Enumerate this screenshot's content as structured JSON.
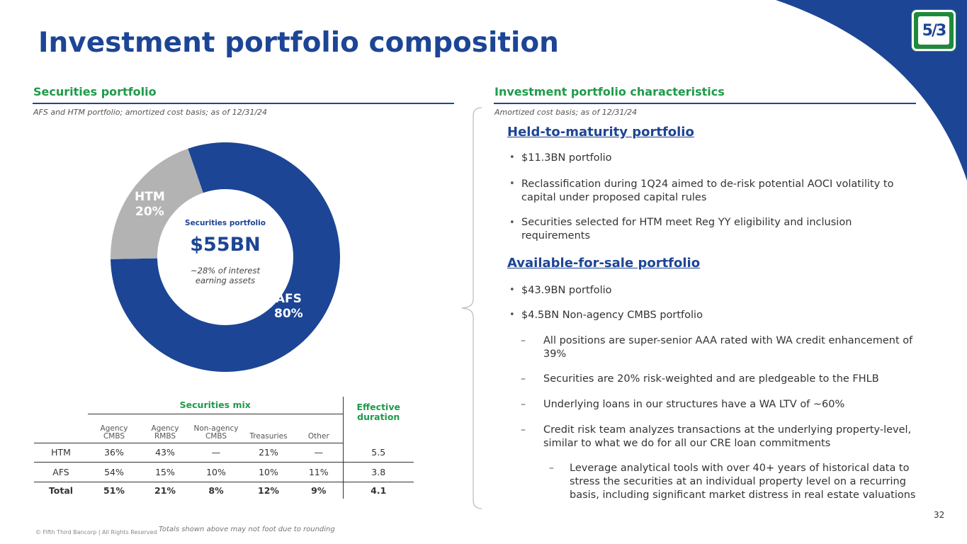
{
  "title": "Investment portfolio composition",
  "left": {
    "heading": "Securities portfolio",
    "subtitle": "AFS and HTM portfolio; amortized cost basis; as of 12/31/24",
    "donut": {
      "center_label": "Securities portfolio",
      "center_value": "$55BN",
      "center_note_1": "~28% of interest",
      "center_note_2": "earning assets",
      "slices": [
        {
          "name": "AFS",
          "pct_label": "80%",
          "value": 80,
          "color": "#1d4595"
        },
        {
          "name": "HTM",
          "pct_label": "20%",
          "value": 20,
          "color": "#b3b3b3"
        }
      ]
    },
    "table": {
      "group_header": "Securities mix",
      "duration_header_1": "Effective",
      "duration_header_2": "duration",
      "columns": [
        {
          "l1": "Agency",
          "l2": "CMBS"
        },
        {
          "l1": "Agency",
          "l2": "RMBS"
        },
        {
          "l1": "Non-agency",
          "l2": "CMBS"
        },
        {
          "l1": "",
          "l2": "Treasuries"
        },
        {
          "l1": "",
          "l2": "Other"
        }
      ],
      "rows": [
        {
          "label": "HTM",
          "cells": [
            "36%",
            "43%",
            "—",
            "21%",
            "—"
          ],
          "duration": "5.5"
        },
        {
          "label": "AFS",
          "cells": [
            "54%",
            "15%",
            "10%",
            "10%",
            "11%"
          ],
          "duration": "3.8"
        },
        {
          "label": "Total",
          "cells": [
            "51%",
            "21%",
            "8%",
            "12%",
            "9%"
          ],
          "duration": "4.1"
        }
      ]
    },
    "note": "Totals shown above may not foot due to rounding"
  },
  "right": {
    "heading": "Investment portfolio characteristics",
    "subtitle": "Amortized cost basis; as of 12/31/24",
    "htm_title": "Held-to-maturity portfolio",
    "htm_b1": "$11.3BN portfolio",
    "htm_b2a": "Reclassification during 1Q24 aimed to de-risk potential AOCI volatility to",
    "htm_b2b": "capital under proposed capital rules",
    "htm_b3a": "Securities selected for HTM meet Reg YY eligibility and inclusion",
    "htm_b3b": "requirements",
    "afs_title": "Available-for-sale portfolio",
    "afs_b1": "$43.9BN portfolio",
    "afs_b2": "$4.5BN Non-agency CMBS portfolio",
    "afs_d1a": "All positions are super-senior AAA rated with WA credit enhancement of",
    "afs_d1b": "39%",
    "afs_d2": "Securities are 20% risk-weighted and are pledgeable to the FHLB",
    "afs_d3": "Underlying loans in our structures have a WA LTV of ~60%",
    "afs_d4a": "Credit risk team analyzes transactions at the underlying property-level,",
    "afs_d4b": "similar to what we do for all our CRE loan commitments",
    "afs_e1a": "Leverage analytical tools with over 40+ years of historical data to",
    "afs_e1b": "stress the securities at an individual property level on a recurring",
    "afs_e1c": "basis, including significant market distress in real estate valuations"
  },
  "footer": "© Fifth Third Bancorp | All Rights Reserved",
  "page_number": "32",
  "colors": {
    "brand_blue": "#1d4595",
    "brand_green": "#1f9a4a",
    "htm_gray": "#b3b3b3"
  }
}
